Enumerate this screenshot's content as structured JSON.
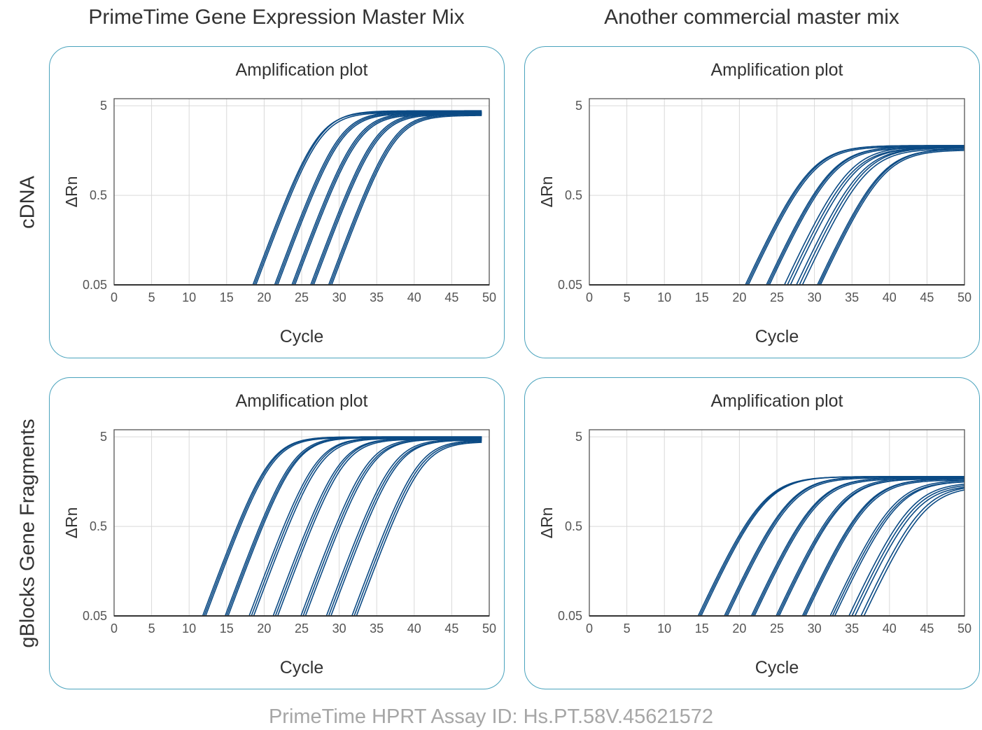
{
  "column_headers": [
    "PrimeTime Gene Expression Master Mix",
    "Another commercial master mix"
  ],
  "row_headers": [
    "cDNA",
    "gBlocks Gene Fragments"
  ],
  "footer": "PrimeTime HPRT Assay ID: Hs.PT.58V.45621572",
  "colors": {
    "curve": "#0b4a84",
    "frame": "#4aa3bd",
    "grid": "#d9d9d9",
    "axis": "#555555"
  },
  "chart_data": [
    {
      "type": "line",
      "title": "Amplification plot",
      "xlabel": "Cycle",
      "ylabel": "ΔRn",
      "y_scale": "log",
      "ylim": [
        0.05,
        6
      ],
      "xlim": [
        0,
        50
      ],
      "x_ticks": [
        0,
        5,
        10,
        15,
        20,
        25,
        30,
        35,
        40,
        45,
        50
      ],
      "y_ticks": [
        0.05,
        0.5,
        5
      ],
      "grid": true,
      "x_end": 49,
      "baseline": 0.05,
      "slope": 0.52,
      "curves": [
        {
          "ct": 18.5,
          "plateau": 4.3
        },
        {
          "ct": 18.7,
          "plateau": 4.4
        },
        {
          "ct": 18.9,
          "plateau": 4.2
        },
        {
          "ct": 21.4,
          "plateau": 4.3
        },
        {
          "ct": 21.6,
          "plateau": 4.2
        },
        {
          "ct": 21.8,
          "plateau": 4.1
        },
        {
          "ct": 23.7,
          "plateau": 4.2
        },
        {
          "ct": 23.9,
          "plateau": 4.1
        },
        {
          "ct": 24.1,
          "plateau": 4.0
        },
        {
          "ct": 26.2,
          "plateau": 4.2
        },
        {
          "ct": 26.4,
          "plateau": 4.1
        },
        {
          "ct": 26.6,
          "plateau": 4.0
        },
        {
          "ct": 28.6,
          "plateau": 4.1
        },
        {
          "ct": 28.8,
          "plateau": 4.0
        },
        {
          "ct": 29.0,
          "plateau": 3.9
        }
      ]
    },
    {
      "type": "line",
      "title": "Amplification plot",
      "xlabel": "Cycle",
      "ylabel": "ΔRn",
      "y_scale": "log",
      "ylim": [
        0.05,
        6
      ],
      "xlim": [
        0,
        50
      ],
      "x_ticks": [
        0,
        5,
        10,
        15,
        20,
        25,
        30,
        35,
        40,
        45,
        50
      ],
      "y_ticks": [
        0.05,
        0.5,
        5
      ],
      "grid": true,
      "x_end": 50,
      "baseline": 0.05,
      "slope": 0.42,
      "curves": [
        {
          "ct": 20.8,
          "plateau": 1.8
        },
        {
          "ct": 21.0,
          "plateau": 1.8
        },
        {
          "ct": 21.2,
          "plateau": 1.75
        },
        {
          "ct": 23.6,
          "plateau": 1.75
        },
        {
          "ct": 23.8,
          "plateau": 1.75
        },
        {
          "ct": 24.0,
          "plateau": 1.7
        },
        {
          "ct": 26.0,
          "plateau": 1.75
        },
        {
          "ct": 26.4,
          "plateau": 1.7
        },
        {
          "ct": 26.8,
          "plateau": 1.7
        },
        {
          "ct": 27.6,
          "plateau": 1.7
        },
        {
          "ct": 28.0,
          "plateau": 1.7
        },
        {
          "ct": 28.4,
          "plateau": 1.65
        },
        {
          "ct": 30.4,
          "plateau": 1.65
        },
        {
          "ct": 30.6,
          "plateau": 1.65
        },
        {
          "ct": 30.8,
          "plateau": 1.6
        }
      ]
    },
    {
      "type": "line",
      "title": "Amplification plot",
      "xlabel": "Cycle",
      "ylabel": "ΔRn",
      "y_scale": "log",
      "ylim": [
        0.05,
        6
      ],
      "xlim": [
        0,
        50
      ],
      "x_ticks": [
        0,
        5,
        10,
        15,
        20,
        25,
        30,
        35,
        40,
        45,
        50
      ],
      "y_ticks": [
        0.05,
        0.5,
        5
      ],
      "grid": true,
      "x_end": 49,
      "baseline": 0.05,
      "slope": 0.52,
      "curves": [
        {
          "ct": 11.8,
          "plateau": 5.0
        },
        {
          "ct": 12.0,
          "plateau": 5.0
        },
        {
          "ct": 12.2,
          "plateau": 4.9
        },
        {
          "ct": 14.8,
          "plateau": 5.0
        },
        {
          "ct": 15.0,
          "plateau": 4.9
        },
        {
          "ct": 15.2,
          "plateau": 4.9
        },
        {
          "ct": 18.0,
          "plateau": 4.9
        },
        {
          "ct": 18.3,
          "plateau": 4.9
        },
        {
          "ct": 18.6,
          "plateau": 4.8
        },
        {
          "ct": 21.2,
          "plateau": 4.8
        },
        {
          "ct": 21.5,
          "plateau": 4.8
        },
        {
          "ct": 21.8,
          "plateau": 4.7
        },
        {
          "ct": 24.9,
          "plateau": 4.8
        },
        {
          "ct": 25.2,
          "plateau": 4.7
        },
        {
          "ct": 25.5,
          "plateau": 4.7
        },
        {
          "ct": 28.3,
          "plateau": 4.7
        },
        {
          "ct": 28.6,
          "plateau": 4.6
        },
        {
          "ct": 28.9,
          "plateau": 4.6
        },
        {
          "ct": 31.7,
          "plateau": 4.6
        },
        {
          "ct": 32.0,
          "plateau": 4.5
        },
        {
          "ct": 32.3,
          "plateau": 4.4
        }
      ]
    },
    {
      "type": "line",
      "title": "Amplification plot",
      "xlabel": "Cycle",
      "ylabel": "ΔRn",
      "y_scale": "log",
      "ylim": [
        0.05,
        6
      ],
      "xlim": [
        0,
        50
      ],
      "x_ticks": [
        0,
        5,
        10,
        15,
        20,
        25,
        30,
        35,
        40,
        45,
        50
      ],
      "y_ticks": [
        0.05,
        0.5,
        5
      ],
      "grid": true,
      "x_end": 50,
      "baseline": 0.05,
      "slope": 0.42,
      "curves": [
        {
          "ct": 14.5,
          "plateau": 1.8
        },
        {
          "ct": 14.7,
          "plateau": 1.8
        },
        {
          "ct": 14.9,
          "plateau": 1.8
        },
        {
          "ct": 18.0,
          "plateau": 1.8
        },
        {
          "ct": 18.2,
          "plateau": 1.8
        },
        {
          "ct": 18.4,
          "plateau": 1.75
        },
        {
          "ct": 21.6,
          "plateau": 1.75
        },
        {
          "ct": 21.8,
          "plateau": 1.75
        },
        {
          "ct": 22.0,
          "plateau": 1.7
        },
        {
          "ct": 24.9,
          "plateau": 1.75
        },
        {
          "ct": 25.1,
          "plateau": 1.7
        },
        {
          "ct": 25.3,
          "plateau": 1.7
        },
        {
          "ct": 28.4,
          "plateau": 1.7
        },
        {
          "ct": 28.6,
          "plateau": 1.7
        },
        {
          "ct": 28.8,
          "plateau": 1.65
        },
        {
          "ct": 32.1,
          "plateau": 1.65
        },
        {
          "ct": 32.4,
          "plateau": 1.6
        },
        {
          "ct": 32.7,
          "plateau": 1.6
        },
        {
          "ct": 34.6,
          "plateau": 1.55
        },
        {
          "ct": 35.0,
          "plateau": 1.5
        },
        {
          "ct": 35.4,
          "plateau": 1.45
        },
        {
          "ct": 36.2,
          "plateau": 1.45
        },
        {
          "ct": 36.6,
          "plateau": 1.4
        }
      ]
    }
  ]
}
